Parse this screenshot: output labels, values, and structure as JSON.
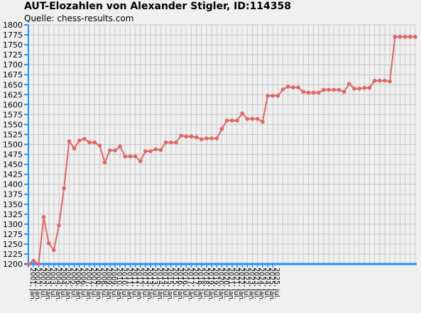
{
  "chart_data": {
    "type": "line",
    "title": "AUT-Elozahlen von Alexander Stigler, ID:114358",
    "subtitle": "Quelle: chess-results.com",
    "xlabel": "",
    "ylabel": "",
    "ylim": [
      1200,
      1800
    ],
    "yticks": [
      1200,
      1225,
      1250,
      1275,
      1300,
      1325,
      1350,
      1375,
      1400,
      1425,
      1450,
      1475,
      1500,
      1525,
      1550,
      1575,
      1600,
      1625,
      1650,
      1675,
      1700,
      1725,
      1750,
      1775,
      1800
    ],
    "x_tick_labels": [
      "2001, jan.",
      "2002, jan.",
      "2002, jul.",
      "2003, jan.",
      "2003, jul.",
      "2004, jan.",
      "2004, jul.",
      "2005, jan.",
      "2005, jul.",
      "2006, jan.",
      "2006, jul.",
      "2007, jan.",
      "2007, jul.",
      "2008, jan.",
      "2008, jul.",
      "2009, jan.",
      "2009, jul.",
      "2010, jan.",
      "2010, jul.",
      "2011, jan.",
      "2011, jul.",
      "2012, jan.",
      "2012, jul.",
      "2013, jan.",
      "2013, jul.",
      "2014, jan.",
      "2014, jul.",
      "2015, jan.",
      "2015, jul.",
      "2016, jan.",
      "2016, jul.",
      "2017, jan.",
      "2017, jul.",
      "2018, jan.",
      "2018, jul.",
      "2019, jan.",
      "2019, jul.",
      "2020, jan.",
      "2020, jul.",
      "2021, jan.",
      "2021, jul.",
      "2022, jan.",
      "2022, jul.",
      "2023, jan.",
      "2023, jul.",
      "2024, jan.",
      "2024, jul.",
      "2025, jan.",
      "2025, jul."
    ],
    "grid": true,
    "legend": "none",
    "colors": {
      "line": "#e06666",
      "marker": "#e06666",
      "axis": "#1e90ff",
      "grid": "#c8c8c8",
      "background": "#f0f0f0"
    },
    "series": [
      {
        "values": [
          1200,
          1208,
          1200,
          1318,
          1252,
          1235,
          1297,
          1390,
          1508,
          1490,
          1510,
          1514,
          1505,
          1505,
          1497,
          1455,
          1485,
          1485,
          1495,
          1470,
          1470,
          1470,
          1458,
          1483,
          1483,
          1488,
          1486,
          1505,
          1505,
          1505,
          1522,
          1520,
          1520,
          1518,
          1513,
          1515,
          1515,
          1515,
          1539,
          1560,
          1560,
          1560,
          1578,
          1564,
          1564,
          1564,
          1557,
          1622,
          1622,
          1622,
          1638,
          1645,
          1643,
          1643,
          1632,
          1630,
          1630,
          1630,
          1637,
          1637,
          1637,
          1637,
          1632,
          1652,
          1640,
          1640,
          1642,
          1642,
          1660,
          1660,
          1660,
          1658,
          1770,
          1770,
          1770,
          1770,
          1770
        ]
      }
    ]
  }
}
